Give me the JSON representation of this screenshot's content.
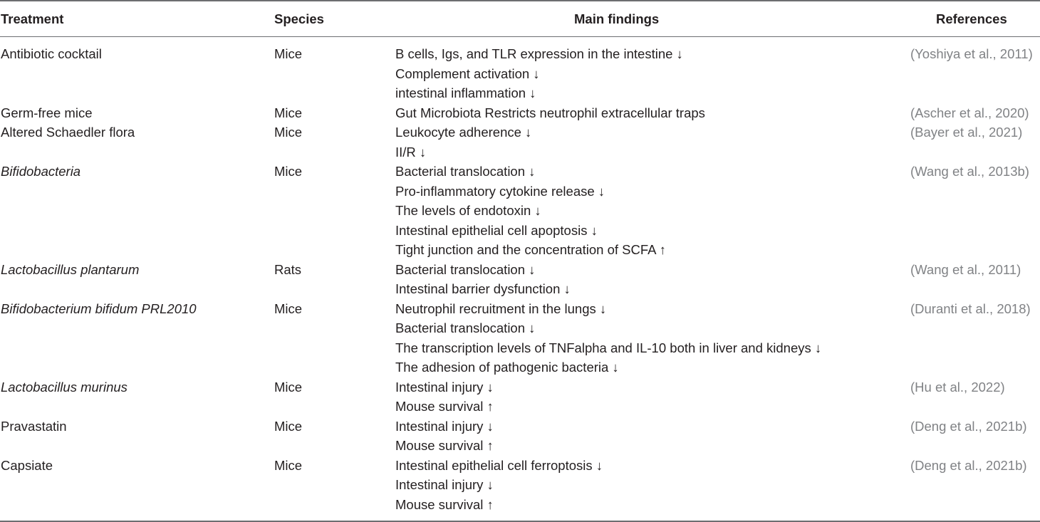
{
  "headers": {
    "treatment": "Treatment",
    "species": "Species",
    "main_findings": "Main findings",
    "references": "References"
  },
  "rows": [
    {
      "treatment": "Antibiotic cocktail",
      "species": "Mice",
      "findings": [
        "B cells, Igs, and TLR expression in the intestine ↓",
        "Complement activation ↓",
        "intestinal inflammation ↓"
      ],
      "reference": "(Yoshiya et al., 2011)"
    },
    {
      "treatment": "Germ-free mice",
      "species": "Mice",
      "findings": [
        "Gut Microbiota Restricts neutrophil extracellular traps"
      ],
      "reference": "(Ascher et al., 2020)"
    },
    {
      "treatment": "Altered Schaedler flora",
      "species": "Mice",
      "findings": [
        "Leukocyte adherence ↓",
        "II/R ↓"
      ],
      "reference": "(Bayer et al., 2021)"
    },
    {
      "treatment": "Bifidobacteria",
      "species": "Mice",
      "findings": [
        "Bacterial translocation ↓",
        "Pro-inflammatory cytokine release ↓",
        "The levels of endotoxin ↓",
        "Intestinal epithelial cell apoptosis ↓",
        "Tight junction and the concentration of SCFA ↑"
      ],
      "reference": "(Wang et al., 2013b)"
    },
    {
      "treatment": "Lactobacillus plantarum",
      "species": "Rats",
      "findings": [
        "Bacterial translocation ↓",
        "Intestinal barrier dysfunction ↓"
      ],
      "reference": "(Wang et al., 2011)"
    },
    {
      "treatment": "Bifidobacterium bifidum PRL2010",
      "species": "Mice",
      "findings": [
        "Neutrophil recruitment in the lungs ↓",
        "Bacterial translocation ↓",
        "The transcription levels of TNFalpha and IL-10 both in liver and kidneys ↓",
        "The adhesion of pathogenic bacteria ↓"
      ],
      "reference": "(Duranti et al., 2018)"
    },
    {
      "treatment": "Lactobacillus murinus",
      "species": "Mice",
      "findings": [
        "Intestinal injury ↓",
        "Mouse survival ↑"
      ],
      "reference": "(Hu et al., 2022)"
    },
    {
      "treatment": "Pravastatin",
      "species": "Mice",
      "findings": [
        "Intestinal injury ↓",
        "Mouse survival ↑"
      ],
      "reference": "(Deng et al., 2021b)"
    },
    {
      "treatment": "Capsiate",
      "species": "Mice",
      "findings": [
        "Intestinal epithelial cell ferroptosis ↓",
        "Intestinal injury ↓",
        "Mouse survival ↑"
      ],
      "reference": "(Deng  et al., 2021b)"
    }
  ]
}
